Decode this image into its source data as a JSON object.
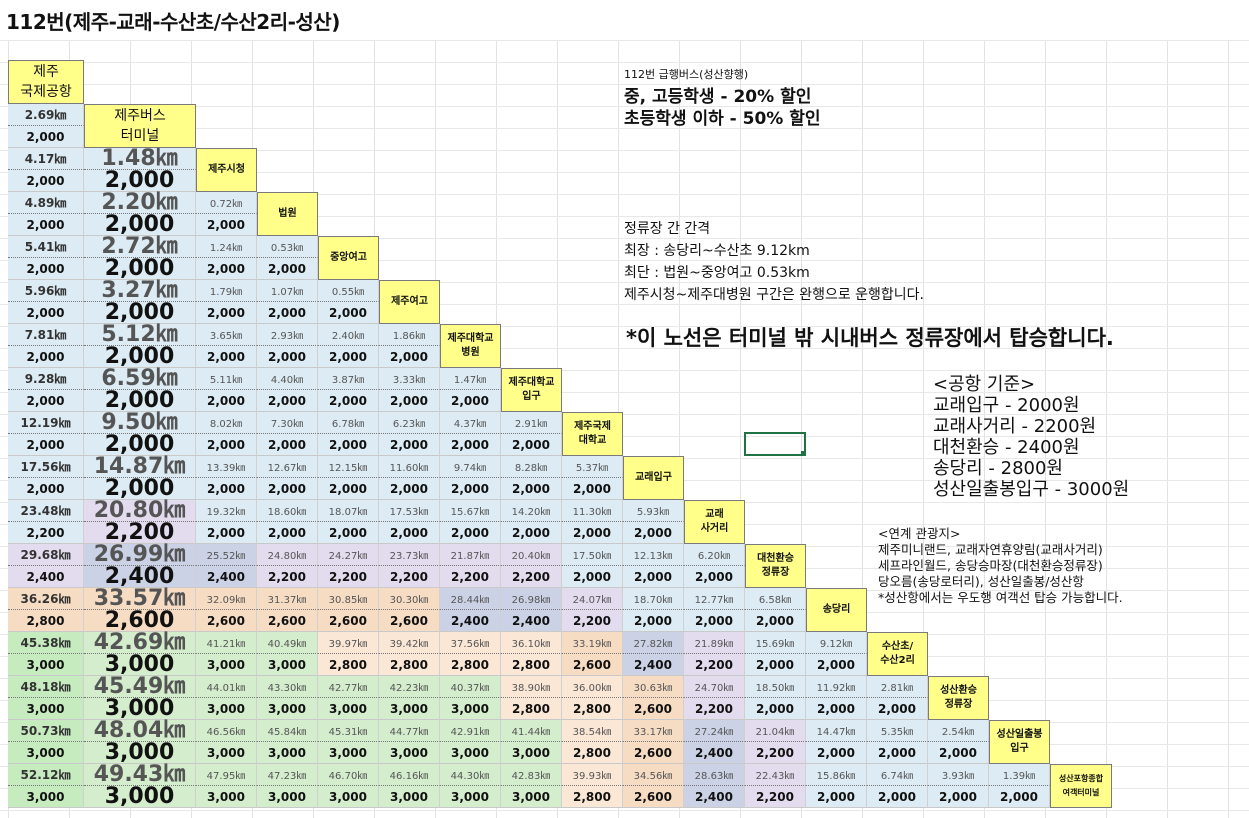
{
  "title": "112번(제주-교래-수산초/수산2리-성산)",
  "colors": {
    "header_yellow": "#ffff8a",
    "fare_2000": "#dcebf4",
    "fare_2200": "#e3dcef",
    "fare_2400": "#ccd2e6",
    "fare_2600": "#f7dcc4",
    "fare_2800": "#fbe7d6",
    "fare_3000": "#d4edcd",
    "first_col_2200": "#dcebf4",
    "first_col_2400": "#e3dcef",
    "first_col_2800": "#f7dcc4",
    "first_col_3000": "#c6ebbf",
    "selection": "#217346"
  },
  "stops": [
    "제주\n국제공항",
    "제주버스\n터미널",
    "제주시청",
    "법원",
    "중앙여고",
    "제주여고",
    "제주대학교\n병원",
    "제주대학교\n입구",
    "제주국제\n대학교",
    "교래입구",
    "교래\n사거리",
    "대천환승\n정류장",
    "송당리",
    "수산초/\n수산2리",
    "성산환승\n정류장",
    "성산일출봉\n입구",
    "성산포항종합\n여객터미널"
  ],
  "rows": [
    {
      "km": [
        "2.69㎞"
      ],
      "fare": [
        "2,000"
      ]
    },
    {
      "km": [
        "4.17㎞",
        "1.48㎞"
      ],
      "fare": [
        "2,000",
        "2,000"
      ]
    },
    {
      "km": [
        "4.89㎞",
        "2.20㎞",
        "0.72㎞"
      ],
      "fare": [
        "2,000",
        "2,000",
        "2,000"
      ]
    },
    {
      "km": [
        "5.41㎞",
        "2.72㎞",
        "1.24㎞",
        "0.53㎞"
      ],
      "fare": [
        "2,000",
        "2,000",
        "2,000",
        "2,000"
      ]
    },
    {
      "km": [
        "5.96㎞",
        "3.27㎞",
        "1.79㎞",
        "1.07㎞",
        "0.55㎞"
      ],
      "fare": [
        "2,000",
        "2,000",
        "2,000",
        "2,000",
        "2,000"
      ]
    },
    {
      "km": [
        "7.81㎞",
        "5.12㎞",
        "3.65㎞",
        "2.93㎞",
        "2.40㎞",
        "1.86㎞"
      ],
      "fare": [
        "2,000",
        "2,000",
        "2,000",
        "2,000",
        "2,000",
        "2,000"
      ]
    },
    {
      "km": [
        "9.28㎞",
        "6.59㎞",
        "5.11㎞",
        "4.40㎞",
        "3.87㎞",
        "3.33㎞",
        "1.47㎞"
      ],
      "fare": [
        "2,000",
        "2,000",
        "2,000",
        "2,000",
        "2,000",
        "2,000",
        "2,000"
      ]
    },
    {
      "km": [
        "12.19㎞",
        "9.50㎞",
        "8.02㎞",
        "7.30㎞",
        "6.78㎞",
        "6.23㎞",
        "4.37㎞",
        "2.91㎞"
      ],
      "fare": [
        "2,000",
        "2,000",
        "2,000",
        "2,000",
        "2,000",
        "2,000",
        "2,000",
        "2,000"
      ]
    },
    {
      "km": [
        "17.56㎞",
        "14.87㎞",
        "13.39㎞",
        "12.67㎞",
        "12.15㎞",
        "11.60㎞",
        "9.74㎞",
        "8.28㎞",
        "5.37㎞"
      ],
      "fare": [
        "2,000",
        "2,000",
        "2,000",
        "2,000",
        "2,000",
        "2,000",
        "2,000",
        "2,000",
        "2,000"
      ]
    },
    {
      "km": [
        "23.48㎞",
        "20.80㎞",
        "19.32㎞",
        "18.60㎞",
        "18.07㎞",
        "17.53㎞",
        "15.67㎞",
        "14.20㎞",
        "11.30㎞",
        "5.93㎞"
      ],
      "fare": [
        "2,200",
        "2,200",
        "2,000",
        "2,000",
        "2,000",
        "2,000",
        "2,000",
        "2,000",
        "2,000",
        "2,000"
      ]
    },
    {
      "km": [
        "29.68㎞",
        "26.99㎞",
        "25.52㎞",
        "24.80㎞",
        "24.27㎞",
        "23.73㎞",
        "21.87㎞",
        "20.40㎞",
        "17.50㎞",
        "12.13㎞",
        "6.20㎞"
      ],
      "fare": [
        "2,400",
        "2,400",
        "2,400",
        "2,200",
        "2,200",
        "2,200",
        "2,200",
        "2,200",
        "2,000",
        "2,000",
        "2,000"
      ]
    },
    {
      "km": [
        "36.26㎞",
        "33.57㎞",
        "32.09㎞",
        "31.37㎞",
        "30.85㎞",
        "30.30㎞",
        "28.44㎞",
        "26.98㎞",
        "24.07㎞",
        "18.70㎞",
        "12.77㎞",
        "6.58㎞"
      ],
      "fare": [
        "2,800",
        "2,600",
        "2,600",
        "2,600",
        "2,600",
        "2,600",
        "2,400",
        "2,400",
        "2,200",
        "2,000",
        "2,000",
        "2,000"
      ]
    },
    {
      "km": [
        "45.38㎞",
        "42.69㎞",
        "41.21㎞",
        "40.49㎞",
        "39.97㎞",
        "39.42㎞",
        "37.56㎞",
        "36.10㎞",
        "33.19㎞",
        "27.82㎞",
        "21.89㎞",
        "15.69㎞",
        "9.12㎞"
      ],
      "fare": [
        "3,000",
        "3,000",
        "3,000",
        "3,000",
        "2,800",
        "2,800",
        "2,800",
        "2,800",
        "2,600",
        "2,400",
        "2,200",
        "2,000",
        "2,000"
      ]
    },
    {
      "km": [
        "48.18㎞",
        "45.49㎞",
        "44.01㎞",
        "43.30㎞",
        "42.77㎞",
        "42.23㎞",
        "40.37㎞",
        "38.90㎞",
        "36.00㎞",
        "30.63㎞",
        "24.70㎞",
        "18.50㎞",
        "11.92㎞",
        "2.81㎞"
      ],
      "fare": [
        "3,000",
        "3,000",
        "3,000",
        "3,000",
        "3,000",
        "3,000",
        "3,000",
        "2,800",
        "2,800",
        "2,600",
        "2,200",
        "2,000",
        "2,000",
        "2,000"
      ]
    },
    {
      "km": [
        "50.73㎞",
        "48.04㎞",
        "46.56㎞",
        "45.84㎞",
        "45.31㎞",
        "44.77㎞",
        "42.91㎞",
        "41.44㎞",
        "38.54㎞",
        "33.17㎞",
        "27.24㎞",
        "21.04㎞",
        "14.47㎞",
        "5.35㎞",
        "2.54㎞"
      ],
      "fare": [
        "3,000",
        "3,000",
        "3,000",
        "3,000",
        "3,000",
        "3,000",
        "3,000",
        "3,000",
        "2,800",
        "2,600",
        "2,400",
        "2,200",
        "2,000",
        "2,000",
        "2,000"
      ]
    },
    {
      "km": [
        "52.12㎞",
        "49.43㎞",
        "47.95㎞",
        "47.23㎞",
        "46.70㎞",
        "46.16㎞",
        "44.30㎞",
        "42.83㎞",
        "39.93㎞",
        "34.56㎞",
        "28.63㎞",
        "22.43㎞",
        "15.86㎞",
        "6.74㎞",
        "3.93㎞",
        "1.39㎞"
      ],
      "fare": [
        "3,000",
        "3,000",
        "3,000",
        "3,000",
        "3,000",
        "3,000",
        "3,000",
        "3,000",
        "2,800",
        "2,600",
        "2,400",
        "2,200",
        "2,000",
        "2,000",
        "2,000",
        "2,000"
      ]
    }
  ],
  "notes": {
    "discount_title": "112번 급행버스(성산향행)",
    "discount_middle_high": "중, 고등학생 - 20% 할인",
    "discount_elementary": "초등학생 이하 - 50% 할인",
    "interval_title": "정류장 간 간격",
    "interval_longest": "최장 : 송당리~수산초 9.12km",
    "interval_shortest": "최단 : 법원~중앙여고 0.53km",
    "slow_section": "제주시청~제주대병원 구간은 완행으로 운행합니다.",
    "boarding_notice": "*이 노선은 터미널 밖 시내버스 정류장에서 탑승합니다.",
    "airport_title": "<공항 기준>",
    "airport_fares": [
      "교래입구 - 2000원",
      "교래사거리 - 2200원",
      "대천환승 - 2400원",
      "송당리 - 2800원",
      "성산일출봉입구 - 3000원"
    ],
    "tourism_title": "<연계 관광지>",
    "tourism_lines": [
      "제주미니랜드, 교래자연휴양림(교래사거리)",
      "세프라인월드, 송당승마장(대천환승정류장)",
      "당오름(송당로터리), 성산일출봉/성산항",
      "*성산항에서는 우도행 여객선 탑승 가능합니다."
    ]
  }
}
